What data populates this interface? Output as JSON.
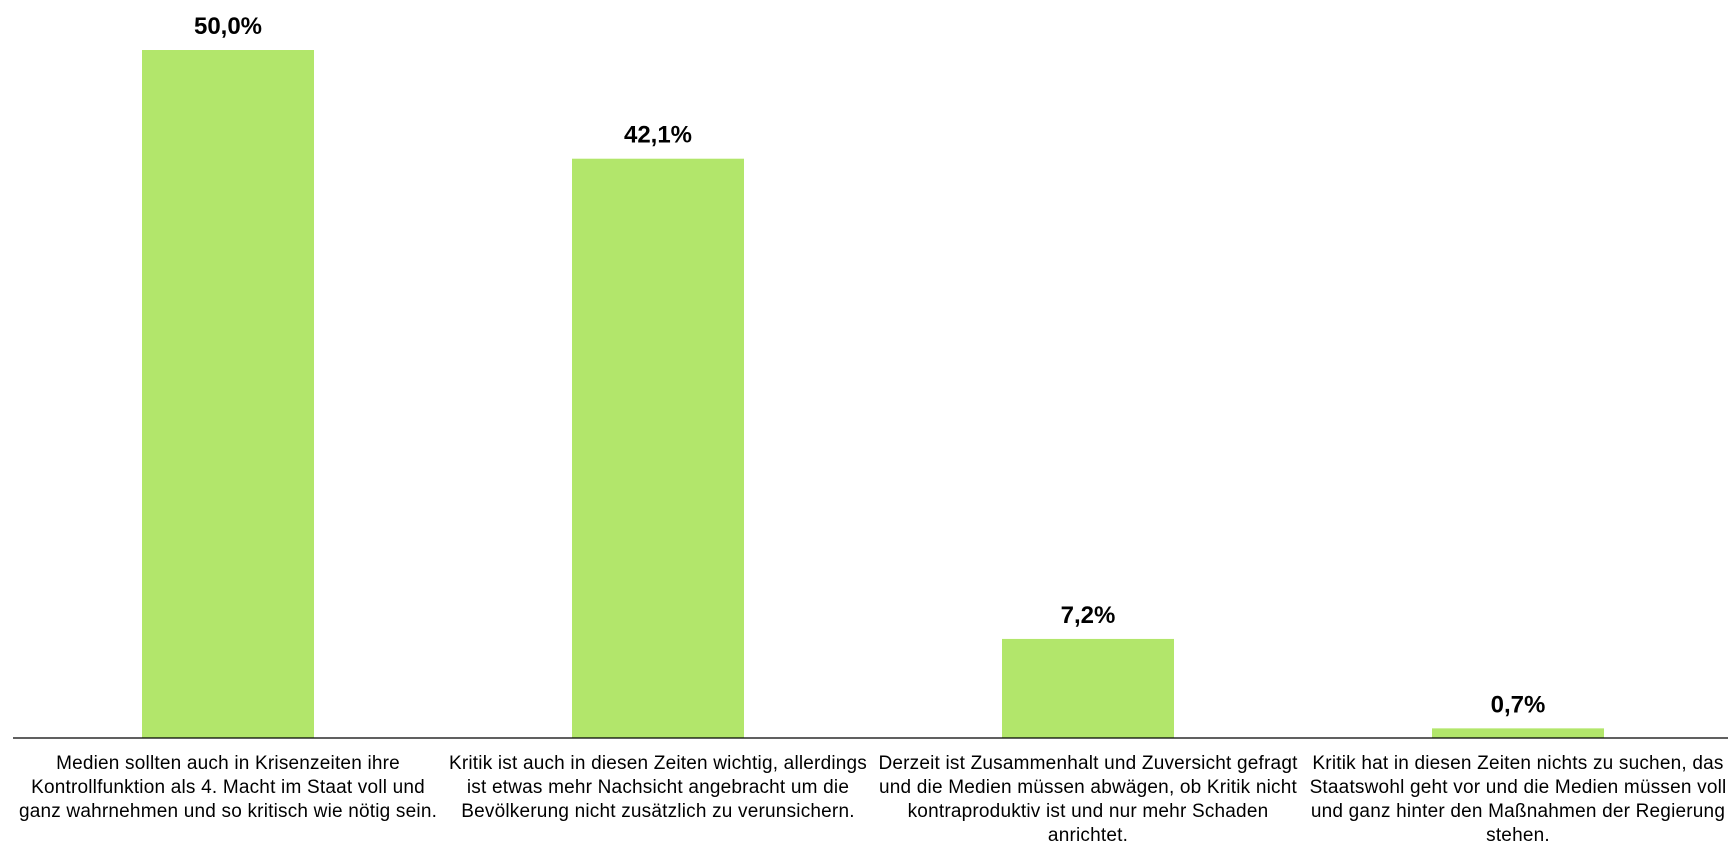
{
  "chart_data": {
    "type": "bar",
    "categories": [
      "Medien sollten auch in Krisenzeiten ihre Kontrollfunktion als 4. Macht im Staat voll und ganz wahrnehmen und so kritisch wie nötig sein.",
      "Kritik ist auch in diesen Zeiten wichtig, allerdings ist etwas mehr Nachsicht angebracht um die Bevölkerung nicht zusätzlich zu verunsichern.",
      "Derzeit ist Zusammenhalt und Zuversicht gefragt und die Medien müssen abwägen, ob Kritik nicht kontraproduktiv ist und nur mehr Schaden anrichtet.",
      "Kritik hat in diesen Zeiten nichts zu suchen, das Staatswohl geht vor und die Medien müssen voll und ganz hinter den Maßnahmen der Regierung stehen."
    ],
    "values": [
      50.0,
      42.1,
      7.2,
      0.7
    ],
    "value_labels": [
      "50,0%",
      "42,1%",
      "7,2%",
      "0,7%"
    ],
    "color": "#b2e66b"
  }
}
